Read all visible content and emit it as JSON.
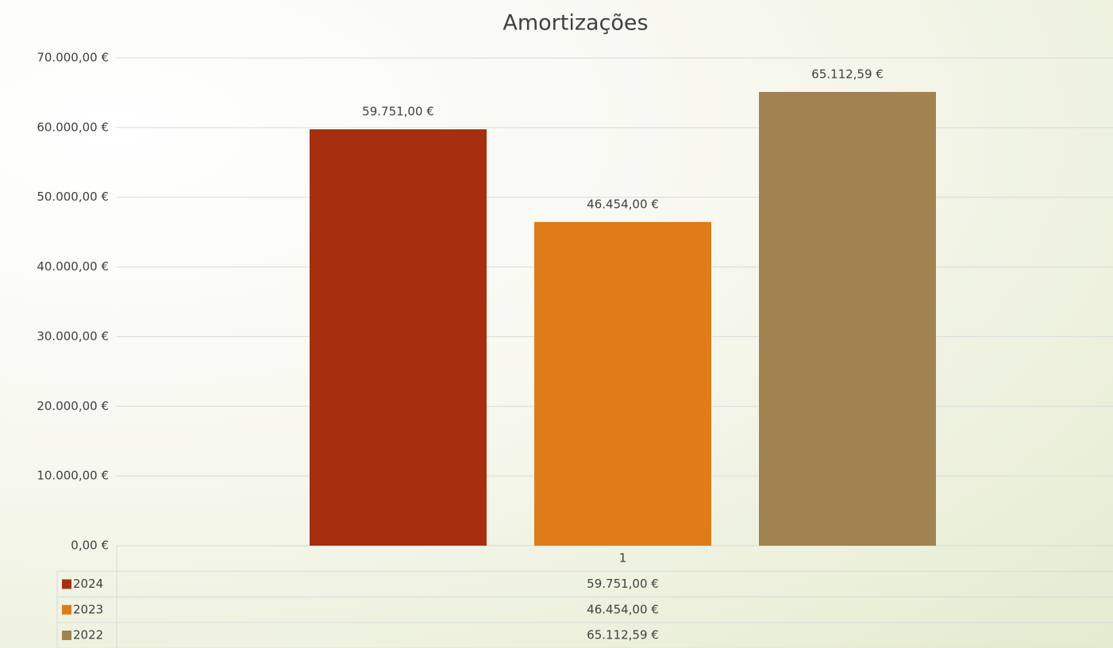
{
  "chart_data": {
    "type": "bar",
    "title": "Amortizações",
    "categories": [
      "1"
    ],
    "series": [
      {
        "name": "2024",
        "color": "#a52f0f",
        "values": [
          59751
        ],
        "value_labels": [
          "59.751,00 €"
        ]
      },
      {
        "name": "2023",
        "color": "#dd7c18",
        "values": [
          46454
        ],
        "value_labels": [
          "46.454,00 €"
        ]
      },
      {
        "name": "2022",
        "color": "#a08351",
        "values": [
          65112.59
        ],
        "value_labels": [
          "65.112,59 €"
        ]
      }
    ],
    "ylim": [
      0,
      70000
    ],
    "yticks": [
      {
        "value": 0,
        "label": "0,00 €"
      },
      {
        "value": 10000,
        "label": "10.000,00 €"
      },
      {
        "value": 20000,
        "label": "20.000,00 €"
      },
      {
        "value": 30000,
        "label": "30.000,00 €"
      },
      {
        "value": 40000,
        "label": "40.000,00 €"
      },
      {
        "value": 50000,
        "label": "50.000,00 €"
      },
      {
        "value": 60000,
        "label": "60.000,00 €"
      },
      {
        "value": 70000,
        "label": "70.000,00 €"
      }
    ],
    "grid": true,
    "data_table": true
  }
}
